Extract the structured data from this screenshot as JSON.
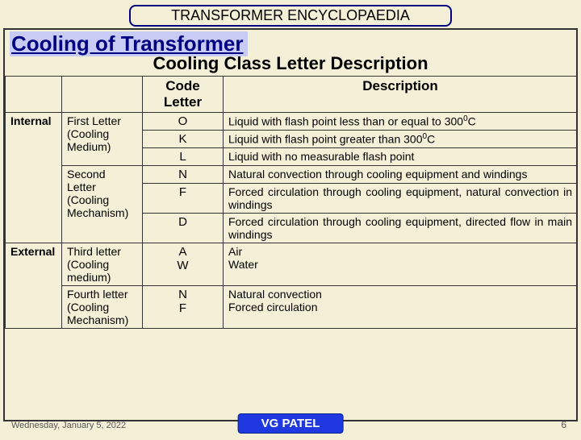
{
  "banner": "TRANSFORMER ENCYCLOPAEDIA",
  "section_title": "Cooling of Transformer",
  "subtitle": "Cooling Class Letter Description",
  "headers": {
    "blank1": "",
    "blank2": "",
    "code": "Code Letter",
    "desc": "Description"
  },
  "groups": [
    {
      "label": "Internal",
      "sections": [
        {
          "name": "First Letter (Cooling Medium)",
          "rows": [
            {
              "code": "O",
              "desc_html": "Liquid with flash point less than or equal to 300<span class='sup'>0</span>C"
            },
            {
              "code": "K",
              "desc_html": "Liquid with flash point greater than 300<span class='sup'>0</span>C"
            },
            {
              "code": "L",
              "desc_html": "Liquid with no measurable flash point"
            }
          ]
        },
        {
          "name": "Second Letter (Cooling Mechanism)",
          "rows": [
            {
              "code": "N",
              "desc_html": "Natural convection through cooling equipment and windings",
              "justify": true
            },
            {
              "code": "F",
              "desc_html": "Forced circulation through cooling equipment, natural convection in windings",
              "justify": true
            },
            {
              "code": "D",
              "desc_html": "Forced circulation through cooling equipment, directed flow in main windings",
              "justify": true
            }
          ]
        }
      ]
    },
    {
      "label": "External",
      "sections": [
        {
          "name": "Third letter (Cooling medium)",
          "rows": [
            {
              "code": "A<br>W",
              "desc_html": "Air<br>Water"
            }
          ]
        },
        {
          "name": "Fourth letter (Cooling Mechanism)",
          "rows": [
            {
              "code": "N<br>F",
              "desc_html": "Natural convection<br>Forced circulation"
            }
          ]
        }
      ]
    }
  ],
  "footer": {
    "author": "VG PATEL",
    "date": "Wednesday, January 5, 2022",
    "page": "6"
  }
}
